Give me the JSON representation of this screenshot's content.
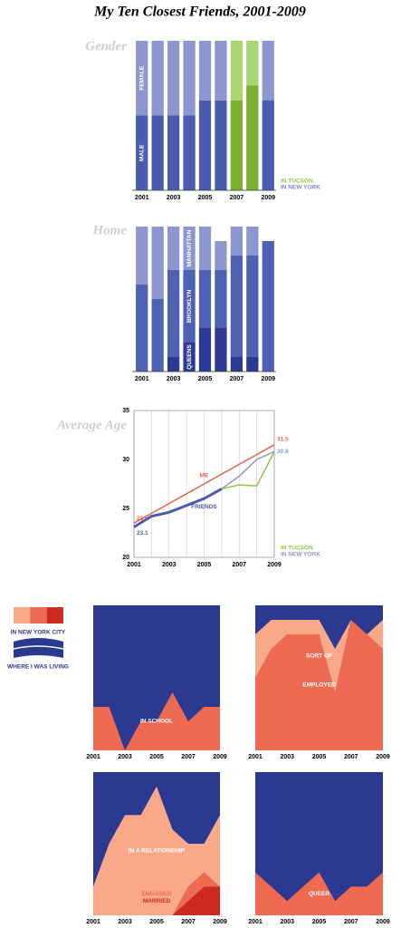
{
  "title": "My Ten Closest Friends, 2001-2009",
  "legend": {
    "items": [
      {
        "name": "IN NEW YORK CITY",
        "colors": [
          "#f9a98a",
          "#ee6a52",
          "#cc2a1e"
        ]
      },
      {
        "name": "WHERE I WAS LIVING",
        "color": "#2b3990"
      }
    ]
  },
  "chart_data": [
    {
      "type": "bar",
      "stacked": true,
      "title": "Gender",
      "categories": [
        "2001",
        null,
        "2003",
        null,
        "2005",
        null,
        "2007",
        null,
        "2009"
      ],
      "ylim": [
        0,
        10
      ],
      "label_index": 0,
      "series": [
        {
          "name": "MALE",
          "color": "#4a5bb0",
          "values": [
            5,
            5,
            5,
            5,
            6,
            6,
            6,
            7,
            6
          ]
        },
        {
          "name": "FEMALE",
          "color": "#8c97cf",
          "values": [
            5,
            5,
            5,
            5,
            4,
            4,
            4,
            3,
            4
          ]
        }
      ],
      "legend": [
        {
          "name": "IN TUCSON",
          "color": "#8dc63f",
          "bar_colors": [
            "#76b02e",
            "#a9d670"
          ]
        },
        {
          "name": "IN NEW YORK",
          "color": "#7f88c6"
        }
      ],
      "location": [
        1,
        1,
        1,
        1,
        1,
        1,
        0,
        0,
        1
      ]
    },
    {
      "type": "bar",
      "stacked": true,
      "title": "Home",
      "categories": [
        "2001",
        null,
        "2003",
        null,
        "2005",
        null,
        "2007",
        null,
        "2009"
      ],
      "ylim": [
        0,
        10
      ],
      "label_index": 3,
      "series": [
        {
          "name": "QUEENS",
          "color": "#2c3a92",
          "values": [
            0,
            0,
            1,
            2,
            3,
            3,
            1,
            1,
            0
          ]
        },
        {
          "name": "BROOKLYN",
          "color": "#4f61b3",
          "values": [
            6,
            5,
            6,
            5,
            4,
            4,
            7,
            7,
            9
          ]
        },
        {
          "name": "MANHATTAN",
          "color": "#8c97cf",
          "values": [
            4,
            5,
            3,
            3,
            3,
            2,
            2,
            2,
            0
          ]
        }
      ]
    },
    {
      "type": "line",
      "title": "Average Age",
      "x": [
        2001,
        2002,
        2003,
        2004,
        2005,
        2006,
        2007,
        2008,
        2009
      ],
      "xlim": [
        2001,
        2009
      ],
      "xticks": [
        2001,
        2003,
        2005,
        2007,
        2009
      ],
      "ylim": [
        20,
        35
      ],
      "yticks": [
        20,
        25,
        30,
        35
      ],
      "grid": "x",
      "series": [
        {
          "name": "ME",
          "color": "#f0604a",
          "width": 1.5,
          "inline": "above",
          "labels": "ends",
          "values": [
            23.5,
            24.5,
            25.5,
            26.5,
            27.5,
            28.5,
            29.5,
            30.5,
            31.5
          ]
        },
        {
          "name": "FRIENDS",
          "color": "#4a5bb0",
          "width": 3,
          "inline": "below",
          "labels": "start",
          "values": [
            23.1,
            24.2,
            24.6,
            25.3,
            26.0,
            27.0,
            null,
            null,
            null
          ]
        },
        {
          "name": "IN TUCSON",
          "color": "#8dc63f",
          "width": 1.5,
          "values": [
            null,
            null,
            null,
            null,
            null,
            27.0,
            27.4,
            27.3,
            30.8
          ]
        },
        {
          "name": "IN NEW YORK",
          "color": "#8f98c8",
          "width": 1.5,
          "labels": "end",
          "values": [
            null,
            null,
            null,
            null,
            null,
            27.0,
            28.3,
            30.0,
            30.8
          ]
        }
      ]
    },
    {
      "type": "area",
      "categories": [
        "2001",
        null,
        "2003",
        null,
        "2005",
        null,
        "2007",
        null,
        "2009"
      ],
      "ylim": [
        0,
        10
      ],
      "background": "#2b3990",
      "series": [
        {
          "name": "IN SCHOOL",
          "color": "#ee6a52",
          "label_color": "#ffffff",
          "values": [
            3,
            3,
            0,
            2,
            2,
            4,
            2,
            3,
            3
          ]
        }
      ]
    },
    {
      "type": "area",
      "categories": [
        "2001",
        null,
        "2003",
        null,
        "2005",
        null,
        "2007",
        null,
        "2009"
      ],
      "ylim": [
        0,
        10
      ],
      "background": "#2b3990",
      "series": [
        {
          "name": "EMPLOYED",
          "color": "#ee6a52",
          "label_color": "#ffffff",
          "values": [
            5,
            7,
            8,
            8,
            8,
            4,
            9,
            8,
            7
          ]
        },
        {
          "name": "SORT OF",
          "color": "#f9a98a",
          "label_color": "#ffffff",
          "values": [
            3,
            2,
            1,
            1,
            1,
            3,
            0,
            0,
            2
          ]
        }
      ]
    },
    {
      "type": "area",
      "categories": [
        "2001",
        null,
        "2003",
        null,
        "2005",
        null,
        "2007",
        null,
        "2009"
      ],
      "ylim": [
        0,
        10
      ],
      "background": "#2b3990",
      "series": [
        {
          "name": "MARRIED",
          "color": "#cc2a1e",
          "label_color": "#cc2a1e",
          "values": [
            0,
            0,
            0,
            0,
            0,
            0,
            1,
            2,
            2
          ]
        },
        {
          "name": "ENGAGED",
          "color": "#ee6a52",
          "label_color": "#ee6a52",
          "values": [
            0,
            0,
            0,
            0,
            0,
            0,
            1,
            1,
            0
          ]
        },
        {
          "name": "IN A RELATIONSHIP",
          "color": "#f9a98a",
          "label_color": "#ffffff",
          "values": [
            2,
            5,
            7,
            7,
            9,
            6,
            3,
            2,
            5
          ]
        }
      ]
    },
    {
      "type": "area",
      "categories": [
        "2001",
        null,
        "2003",
        null,
        "2005",
        null,
        "2007",
        null,
        "2009"
      ],
      "ylim": [
        0,
        10
      ],
      "background": "#2b3990",
      "series": [
        {
          "name": "QUEER",
          "color": "#ee6a52",
          "label_color": "#ffffff",
          "values": [
            3,
            2,
            1,
            2,
            3,
            1,
            2,
            2,
            3
          ]
        }
      ]
    }
  ]
}
